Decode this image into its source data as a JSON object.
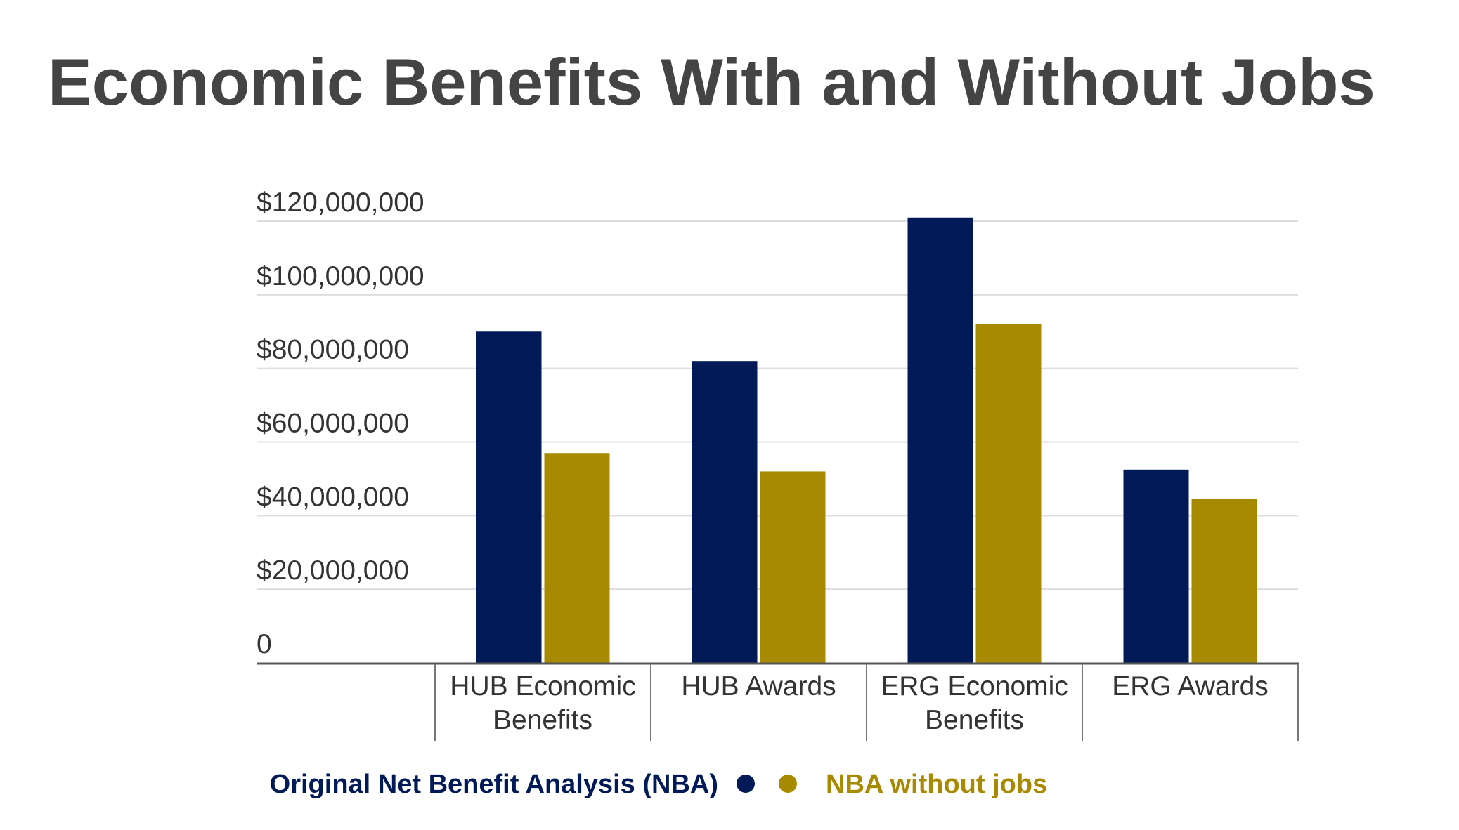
{
  "title": "Economic Benefits With and Without Jobs",
  "chart_data": {
    "type": "bar",
    "title": "Economic Benefits With and Without Jobs",
    "categories": [
      [
        "HUB Economic",
        "Benefits"
      ],
      [
        "HUB Awards"
      ],
      [
        "ERG Economic",
        "Benefits"
      ],
      [
        "ERG Awards"
      ]
    ],
    "series": [
      {
        "name": "Original Net Benefit Analysis (NBA)",
        "color": "#001a57",
        "values": [
          90000000,
          82000000,
          121000000,
          52500000
        ]
      },
      {
        "name": "NBA without jobs",
        "color": "#a88a00",
        "values": [
          57000000,
          52000000,
          92000000,
          44500000
        ]
      }
    ],
    "ylim": [
      0,
      120000000
    ],
    "yticks": [
      {
        "value": 0,
        "label": "0"
      },
      {
        "value": 20000000,
        "label": "$20,000,000"
      },
      {
        "value": 40000000,
        "label": "$40,000,000"
      },
      {
        "value": 60000000,
        "label": "$60,000,000"
      },
      {
        "value": 80000000,
        "label": "$80,000,000"
      },
      {
        "value": 100000000,
        "label": "$100,000,000"
      },
      {
        "value": 120000000,
        "label": "$120,000,000"
      }
    ],
    "xlabel": "",
    "ylabel": "",
    "grid": true,
    "legend_position": "bottom"
  }
}
